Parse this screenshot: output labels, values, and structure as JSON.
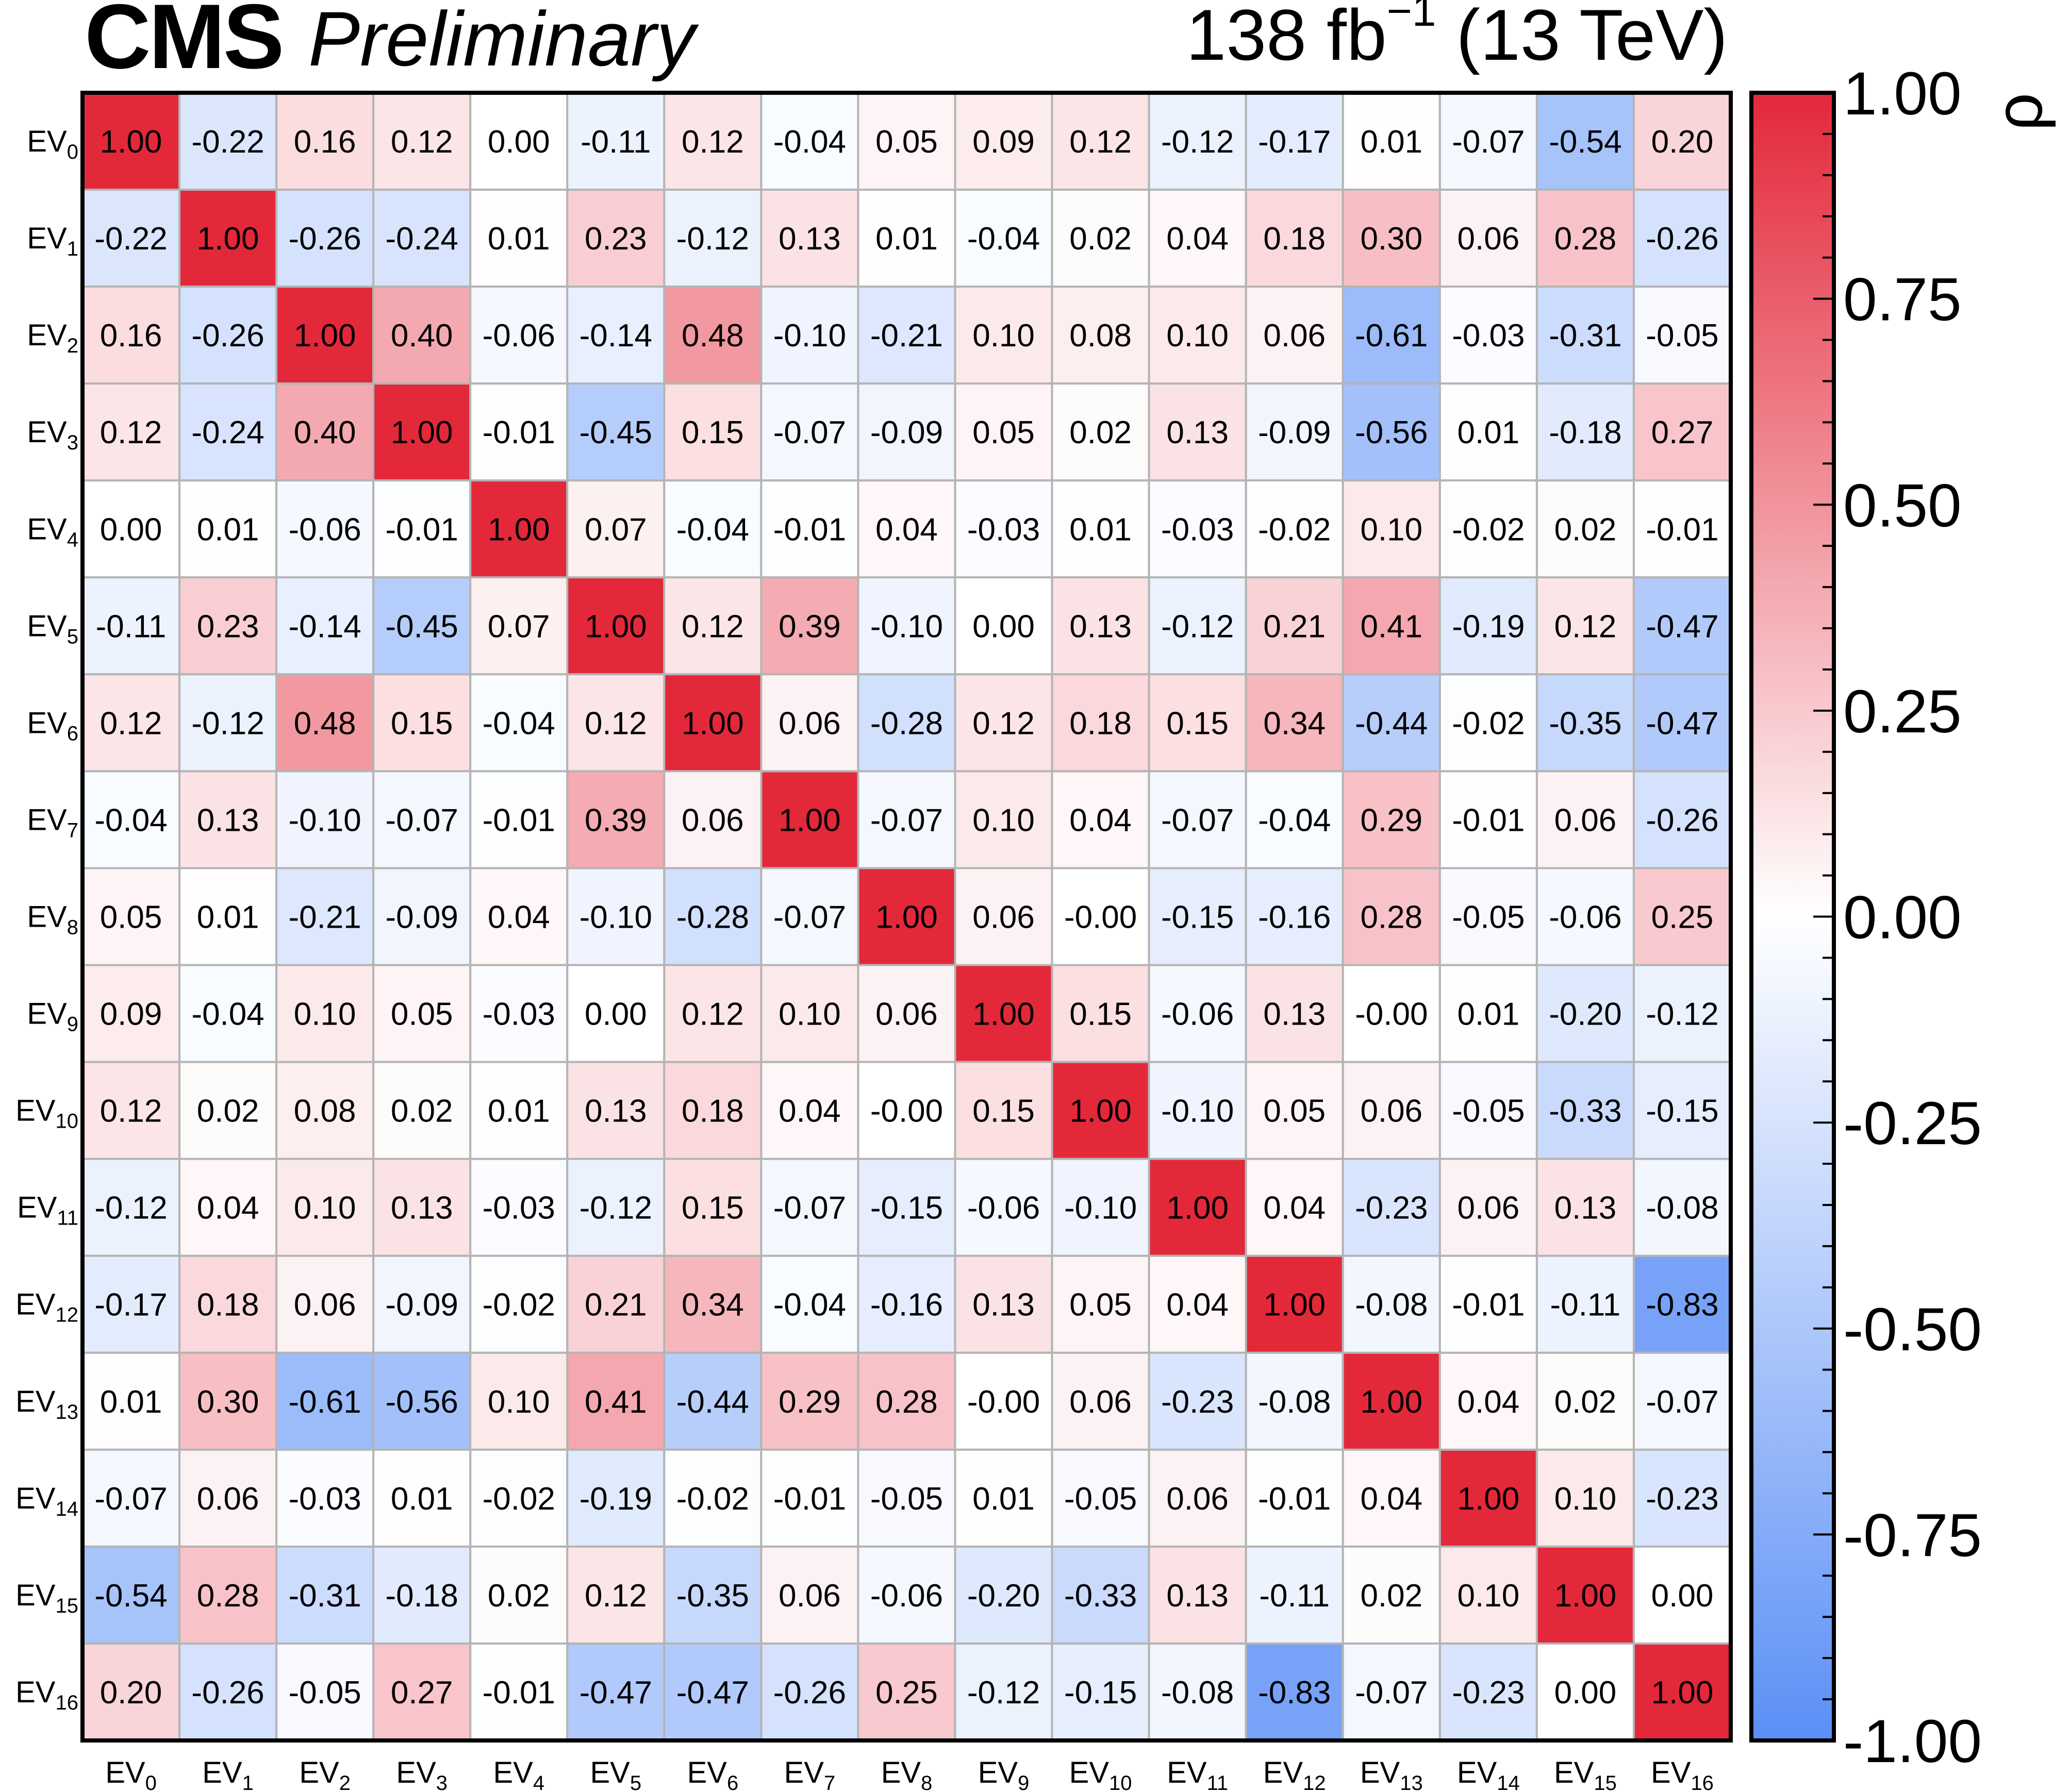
{
  "header": {
    "experiment": "CMS",
    "status": "Preliminary",
    "lumi_value": "138 fb",
    "lumi_exponent": "−1",
    "energy": "(13 TeV)"
  },
  "chart_data": {
    "type": "heatmap",
    "x_labels": [
      "EV_0",
      "EV_1",
      "EV_2",
      "EV_3",
      "EV_4",
      "EV_5",
      "EV_6",
      "EV_7",
      "EV_8",
      "EV_9",
      "EV_10",
      "EV_11",
      "EV_12",
      "EV_13",
      "EV_14",
      "EV_15",
      "EV_16"
    ],
    "y_labels": [
      "EV_0",
      "EV_1",
      "EV_2",
      "EV_3",
      "EV_4",
      "EV_5",
      "EV_6",
      "EV_7",
      "EV_8",
      "EV_9",
      "EV_10",
      "EV_11",
      "EV_12",
      "EV_13",
      "EV_14",
      "EV_15",
      "EV_16"
    ],
    "label_base": "EV",
    "label_indices": [
      "0",
      "1",
      "2",
      "3",
      "4",
      "5",
      "6",
      "7",
      "8",
      "9",
      "10",
      "11",
      "12",
      "13",
      "14",
      "15",
      "16"
    ],
    "values": [
      [
        "1.00",
        "-0.22",
        "0.16",
        "0.12",
        "0.00",
        "-0.11",
        "0.12",
        "-0.04",
        "0.05",
        "0.09",
        "0.12",
        "-0.12",
        "-0.17",
        "0.01",
        "-0.07",
        "-0.54",
        "0.20"
      ],
      [
        "-0.22",
        "1.00",
        "-0.26",
        "-0.24",
        "0.01",
        "0.23",
        "-0.12",
        "0.13",
        "0.01",
        "-0.04",
        "0.02",
        "0.04",
        "0.18",
        "0.30",
        "0.06",
        "0.28",
        "-0.26"
      ],
      [
        "0.16",
        "-0.26",
        "1.00",
        "0.40",
        "-0.06",
        "-0.14",
        "0.48",
        "-0.10",
        "-0.21",
        "0.10",
        "0.08",
        "0.10",
        "0.06",
        "-0.61",
        "-0.03",
        "-0.31",
        "-0.05"
      ],
      [
        "0.12",
        "-0.24",
        "0.40",
        "1.00",
        "-0.01",
        "-0.45",
        "0.15",
        "-0.07",
        "-0.09",
        "0.05",
        "0.02",
        "0.13",
        "-0.09",
        "-0.56",
        "0.01",
        "-0.18",
        "0.27"
      ],
      [
        "0.00",
        "0.01",
        "-0.06",
        "-0.01",
        "1.00",
        "0.07",
        "-0.04",
        "-0.01",
        "0.04",
        "-0.03",
        "0.01",
        "-0.03",
        "-0.02",
        "0.10",
        "-0.02",
        "0.02",
        "-0.01"
      ],
      [
        "-0.11",
        "0.23",
        "-0.14",
        "-0.45",
        "0.07",
        "1.00",
        "0.12",
        "0.39",
        "-0.10",
        "0.00",
        "0.13",
        "-0.12",
        "0.21",
        "0.41",
        "-0.19",
        "0.12",
        "-0.47"
      ],
      [
        "0.12",
        "-0.12",
        "0.48",
        "0.15",
        "-0.04",
        "0.12",
        "1.00",
        "0.06",
        "-0.28",
        "0.12",
        "0.18",
        "0.15",
        "0.34",
        "-0.44",
        "-0.02",
        "-0.35",
        "-0.47"
      ],
      [
        "-0.04",
        "0.13",
        "-0.10",
        "-0.07",
        "-0.01",
        "0.39",
        "0.06",
        "1.00",
        "-0.07",
        "0.10",
        "0.04",
        "-0.07",
        "-0.04",
        "0.29",
        "-0.01",
        "0.06",
        "-0.26"
      ],
      [
        "0.05",
        "0.01",
        "-0.21",
        "-0.09",
        "0.04",
        "-0.10",
        "-0.28",
        "-0.07",
        "1.00",
        "0.06",
        "-0.00",
        "-0.15",
        "-0.16",
        "0.28",
        "-0.05",
        "-0.06",
        "0.25"
      ],
      [
        "0.09",
        "-0.04",
        "0.10",
        "0.05",
        "-0.03",
        "0.00",
        "0.12",
        "0.10",
        "0.06",
        "1.00",
        "0.15",
        "-0.06",
        "0.13",
        "-0.00",
        "0.01",
        "-0.20",
        "-0.12"
      ],
      [
        "0.12",
        "0.02",
        "0.08",
        "0.02",
        "0.01",
        "0.13",
        "0.18",
        "0.04",
        "-0.00",
        "0.15",
        "1.00",
        "-0.10",
        "0.05",
        "0.06",
        "-0.05",
        "-0.33",
        "-0.15"
      ],
      [
        "-0.12",
        "0.04",
        "0.10",
        "0.13",
        "-0.03",
        "-0.12",
        "0.15",
        "-0.07",
        "-0.15",
        "-0.06",
        "-0.10",
        "1.00",
        "0.04",
        "-0.23",
        "0.06",
        "0.13",
        "-0.08"
      ],
      [
        "-0.17",
        "0.18",
        "0.06",
        "-0.09",
        "-0.02",
        "0.21",
        "0.34",
        "-0.04",
        "-0.16",
        "0.13",
        "0.05",
        "0.04",
        "1.00",
        "-0.08",
        "-0.01",
        "-0.11",
        "-0.83"
      ],
      [
        "0.01",
        "0.30",
        "-0.61",
        "-0.56",
        "0.10",
        "0.41",
        "-0.44",
        "0.29",
        "0.28",
        "-0.00",
        "0.06",
        "-0.23",
        "-0.08",
        "1.00",
        "0.04",
        "0.02",
        "-0.07"
      ],
      [
        "-0.07",
        "0.06",
        "-0.03",
        "0.01",
        "-0.02",
        "-0.19",
        "-0.02",
        "-0.01",
        "-0.05",
        "0.01",
        "-0.05",
        "0.06",
        "-0.01",
        "0.04",
        "1.00",
        "0.10",
        "-0.23"
      ],
      [
        "-0.54",
        "0.28",
        "-0.31",
        "-0.18",
        "0.02",
        "0.12",
        "-0.35",
        "0.06",
        "-0.06",
        "-0.20",
        "-0.33",
        "0.13",
        "-0.11",
        "0.02",
        "0.10",
        "1.00",
        "0.00"
      ],
      [
        "0.20",
        "-0.26",
        "-0.05",
        "0.27",
        "-0.01",
        "-0.47",
        "-0.47",
        "-0.26",
        "0.25",
        "-0.12",
        "-0.15",
        "-0.08",
        "-0.83",
        "-0.07",
        "-0.23",
        "0.00",
        "1.00"
      ]
    ],
    "zlim": [
      -1.0,
      1.0
    ],
    "colorbar_label": "ρ",
    "colorbar_ticks": [
      "1.00",
      "0.75",
      "0.50",
      "0.25",
      "0.00",
      "-0.25",
      "-0.50",
      "-0.75",
      "-1.00"
    ],
    "colorbar_tick_values": [
      1.0,
      0.75,
      0.5,
      0.25,
      0.0,
      -0.25,
      -0.5,
      -0.75,
      -1.0
    ],
    "colors": {
      "positive": "#e3283a",
      "zero": "#ffffff",
      "negative": "#5b8ff6"
    }
  }
}
